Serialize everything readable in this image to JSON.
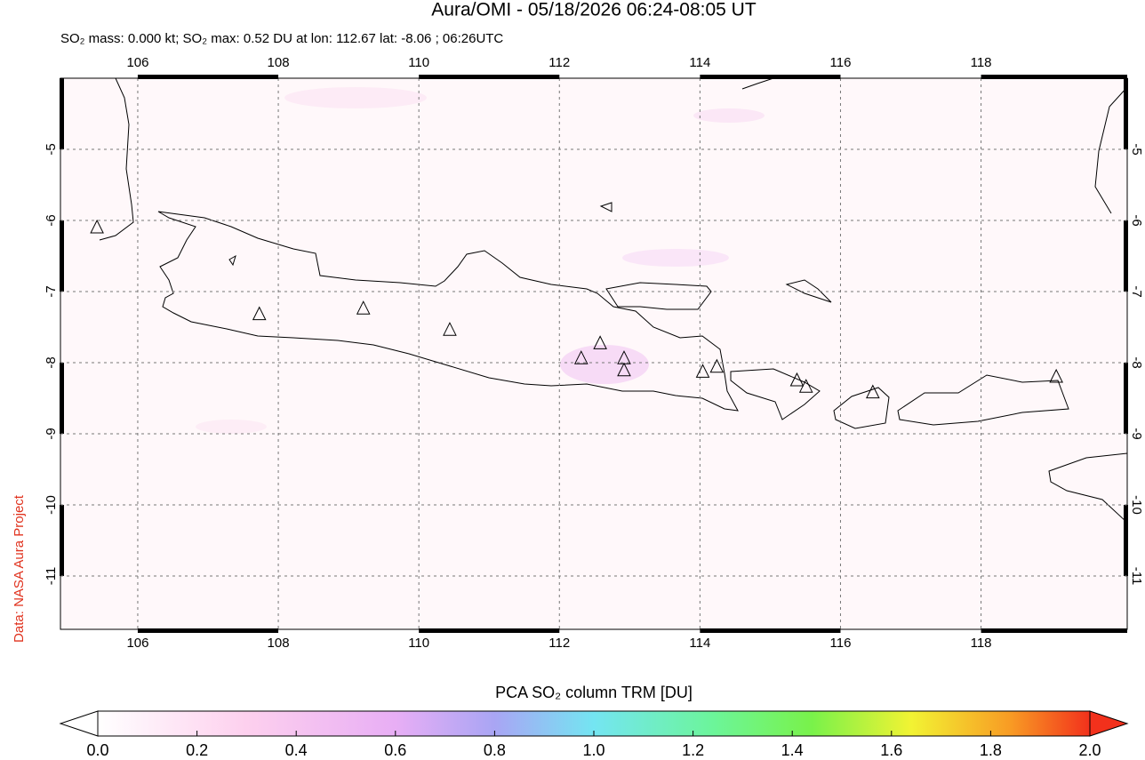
{
  "header": {
    "title": "Aura/OMI - 05/18/2026 06:24-08:05 UT",
    "subtitle": "SO₂ mass: 0.000 kt; SO₂ max: 0.52 DU at lon: 112.67 lat: -8.06 ; 06:26UTC"
  },
  "credit": "Data: NASA Aura Project",
  "map": {
    "lonlim": [
      104.9,
      120.08
    ],
    "latlim": [
      -4.0,
      -11.75
    ],
    "lon_ticks": [
      106,
      108,
      110,
      112,
      114,
      116,
      118
    ],
    "lat_ticks": [
      -5,
      -6,
      -7,
      -8,
      -9,
      -10,
      -11
    ],
    "volcanoes": [
      {
        "lon": 105.42,
        "lat": -6.1
      },
      {
        "lon": 107.73,
        "lat": -7.32
      },
      {
        "lon": 109.21,
        "lat": -7.24
      },
      {
        "lon": 110.44,
        "lat": -7.54
      },
      {
        "lon": 112.31,
        "lat": -7.94
      },
      {
        "lon": 112.58,
        "lat": -7.73
      },
      {
        "lon": 112.92,
        "lat": -7.94
      },
      {
        "lon": 112.92,
        "lat": -8.11
      },
      {
        "lon": 114.04,
        "lat": -8.13
      },
      {
        "lon": 114.24,
        "lat": -8.06
      },
      {
        "lon": 115.38,
        "lat": -8.25
      },
      {
        "lon": 115.51,
        "lat": -8.34
      },
      {
        "lon": 116.46,
        "lat": -8.42
      },
      {
        "lon": 119.07,
        "lat": -8.2
      }
    ]
  },
  "colorbar": {
    "label": "PCA SO₂ column TRM [DU]",
    "lim": [
      0,
      2
    ],
    "ticks": [
      {
        "value": 0,
        "label": "0.0"
      },
      0.2,
      0.4,
      0.6,
      0.8,
      {
        "value": 1,
        "label": "1.0"
      },
      1.2,
      1.4,
      1.6,
      1.8,
      {
        "value": 2,
        "label": "2.0"
      }
    ]
  }
}
